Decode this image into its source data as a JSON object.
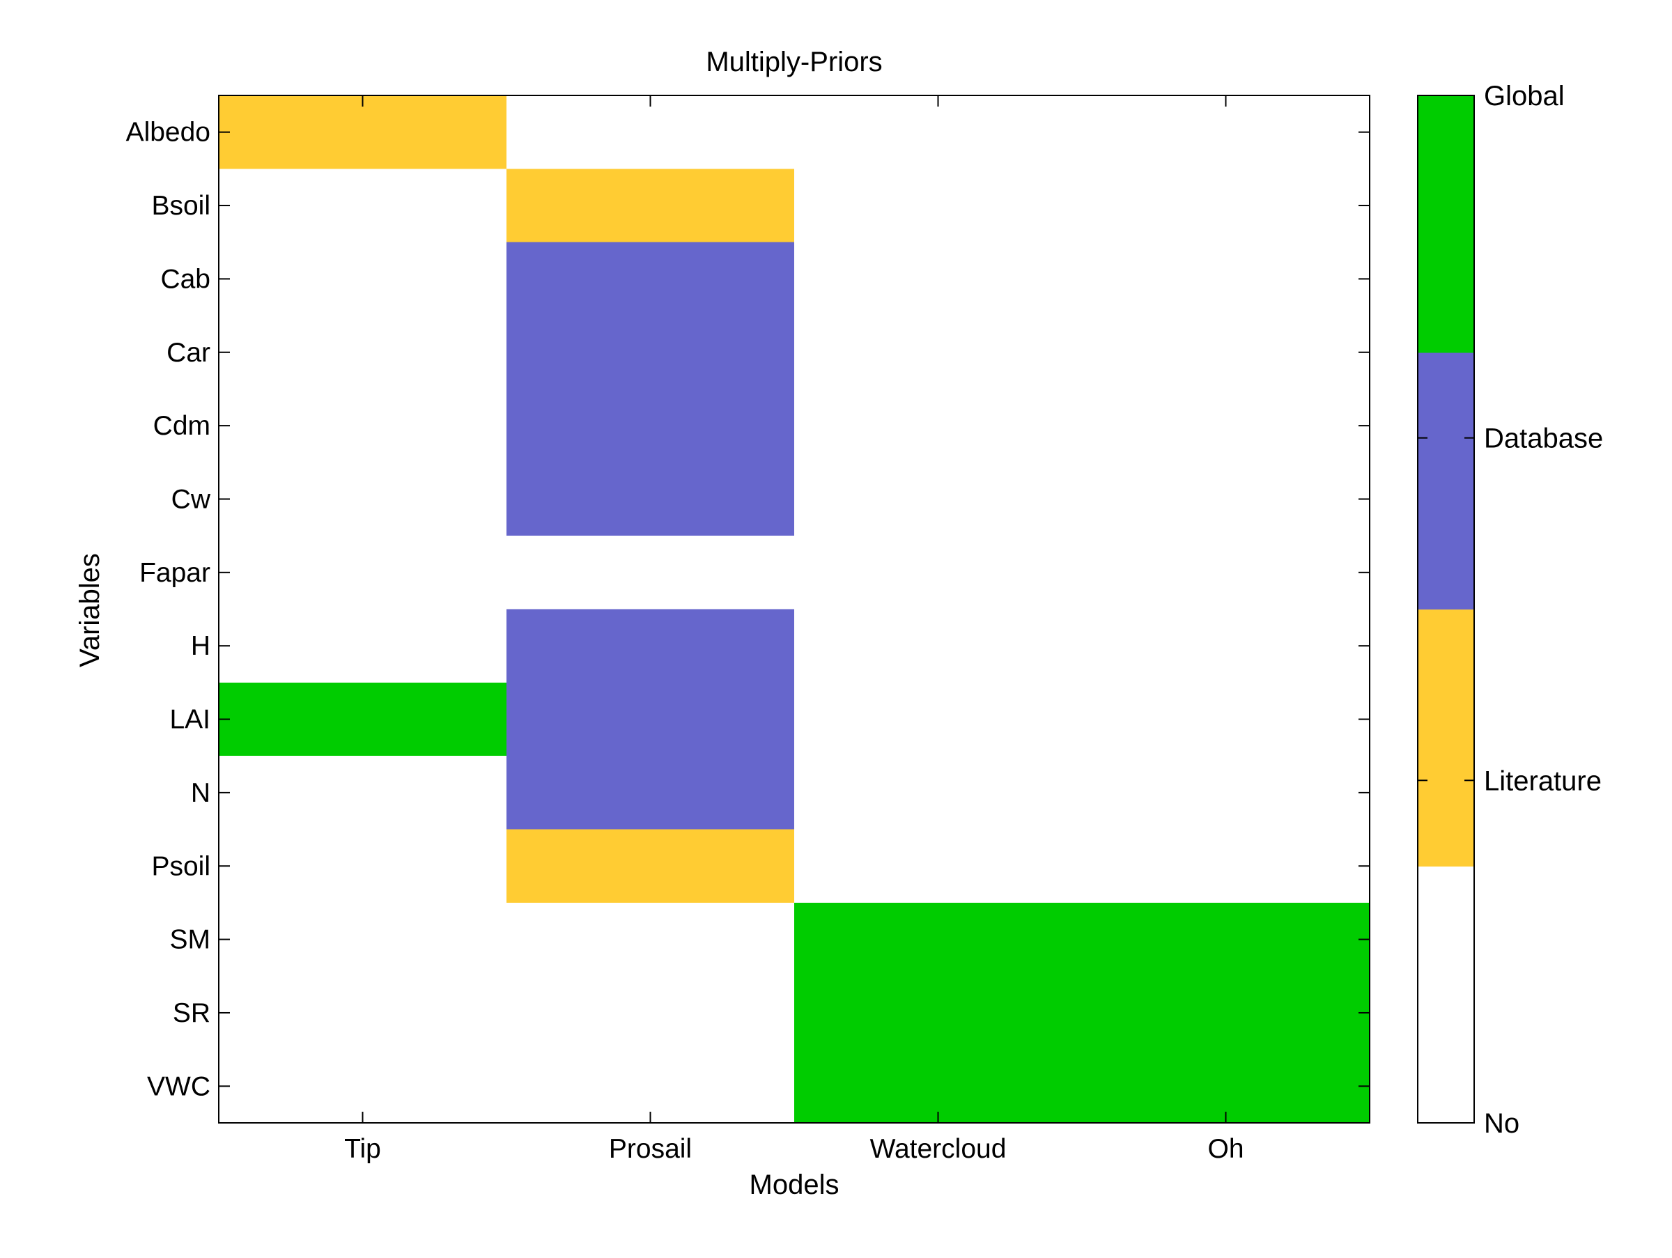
{
  "chart_data": {
    "type": "heatmap",
    "title": "Multiply-Priors",
    "xlabel": "Models",
    "ylabel": "Variables",
    "x_categories": [
      "Tip",
      "Prosail",
      "Watercloud",
      "Oh"
    ],
    "y_categories": [
      "Albedo",
      "Bsoil",
      "Cab",
      "Car",
      "Cdm",
      "Cw",
      "Fapar",
      "H",
      "LAI",
      "N",
      "Psoil",
      "SM",
      "SR",
      "VWC"
    ],
    "levels": [
      "No",
      "Literature",
      "Database",
      "Global"
    ],
    "level_colors": [
      "#ffffff",
      "#ffcc33",
      "#6666cc",
      "#00cc00"
    ],
    "values": [
      [
        1,
        0,
        0,
        0
      ],
      [
        0,
        1,
        0,
        0
      ],
      [
        0,
        2,
        0,
        0
      ],
      [
        0,
        2,
        0,
        0
      ],
      [
        0,
        2,
        0,
        0
      ],
      [
        0,
        2,
        0,
        0
      ],
      [
        0,
        0,
        0,
        0
      ],
      [
        0,
        2,
        0,
        0
      ],
      [
        3,
        2,
        0,
        0
      ],
      [
        0,
        2,
        0,
        0
      ],
      [
        0,
        1,
        0,
        0
      ],
      [
        0,
        0,
        3,
        3
      ],
      [
        0,
        0,
        3,
        3
      ],
      [
        0,
        0,
        3,
        3
      ]
    ],
    "colorbar": {
      "tick_labels": [
        "No",
        "Literature",
        "Database",
        "Global"
      ]
    },
    "grid": false,
    "legend_placement": "right"
  }
}
